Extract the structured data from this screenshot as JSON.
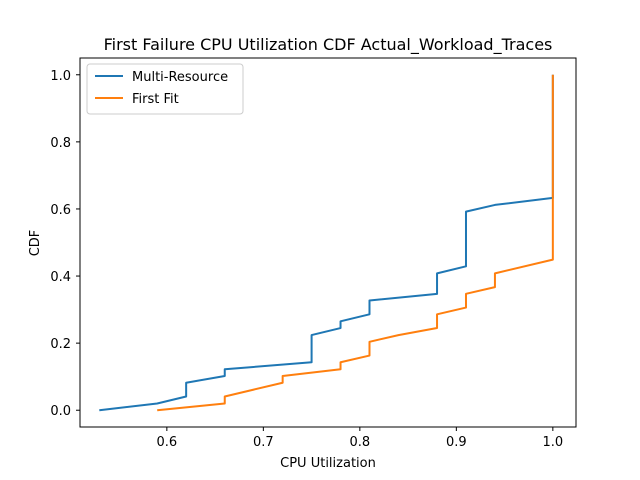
{
  "chart_data": {
    "type": "line",
    "title": "First Failure CPU Utilization CDF Actual_Workload_Traces",
    "xlabel": "CPU Utilization",
    "ylabel": "CDF",
    "xlim": [
      0.51,
      1.024
    ],
    "ylim": [
      -0.05,
      1.05
    ],
    "xticks": [
      0.6,
      0.7,
      0.8,
      0.9,
      1.0
    ],
    "xtick_labels": [
      "0.6",
      "0.7",
      "0.8",
      "0.9",
      "1.0"
    ],
    "yticks": [
      0.0,
      0.2,
      0.4,
      0.6,
      0.8,
      1.0
    ],
    "ytick_labels": [
      "0.0",
      "0.2",
      "0.4",
      "0.6",
      "0.8",
      "1.0"
    ],
    "grid": false,
    "legend_position": "top-left",
    "series": [
      {
        "name": "Multi-Resource",
        "color": "#1f77b4",
        "points": [
          [
            0.53,
            0.0
          ],
          [
            0.59,
            0.02
          ],
          [
            0.62,
            0.041
          ],
          [
            0.62,
            0.082
          ],
          [
            0.66,
            0.102
          ],
          [
            0.66,
            0.122
          ],
          [
            0.75,
            0.143
          ],
          [
            0.75,
            0.224
          ],
          [
            0.78,
            0.245
          ],
          [
            0.78,
            0.265
          ],
          [
            0.81,
            0.286
          ],
          [
            0.81,
            0.327
          ],
          [
            0.88,
            0.347
          ],
          [
            0.88,
            0.408
          ],
          [
            0.91,
            0.429
          ],
          [
            0.91,
            0.592
          ],
          [
            0.94,
            0.612
          ],
          [
            1.0,
            0.633
          ],
          [
            1.0,
            1.0
          ]
        ]
      },
      {
        "name": "First Fit",
        "color": "#ff7f0e",
        "points": [
          [
            0.59,
            0.0
          ],
          [
            0.66,
            0.02
          ],
          [
            0.66,
            0.041
          ],
          [
            0.72,
            0.082
          ],
          [
            0.72,
            0.102
          ],
          [
            0.78,
            0.122
          ],
          [
            0.78,
            0.143
          ],
          [
            0.81,
            0.163
          ],
          [
            0.81,
            0.204
          ],
          [
            0.84,
            0.224
          ],
          [
            0.88,
            0.245
          ],
          [
            0.88,
            0.286
          ],
          [
            0.91,
            0.306
          ],
          [
            0.91,
            0.347
          ],
          [
            0.94,
            0.367
          ],
          [
            0.94,
            0.408
          ],
          [
            1.0,
            0.449
          ],
          [
            1.0,
            1.0
          ]
        ]
      }
    ]
  }
}
